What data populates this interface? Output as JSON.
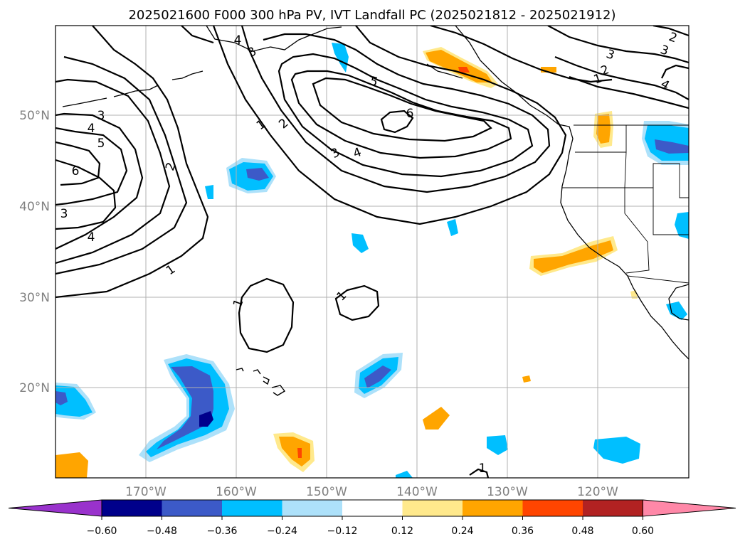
{
  "title": "2025021600 F000 300 hPa PV, IVT Landfall PC (2025021812 - 2025021912)",
  "map": {
    "lat_labels": [
      "50°N",
      "40°N",
      "30°N",
      "20°N"
    ],
    "lon_labels": [
      "170°W",
      "160°W",
      "150°W",
      "140°W",
      "130°W",
      "120°W"
    ],
    "contour_labels": [
      "1",
      "2",
      "3",
      "4",
      "5",
      "6"
    ]
  },
  "colorbar": {
    "tick_labels": [
      "−0.60",
      "−0.48",
      "−0.36",
      "−0.24",
      "−0.12",
      "0.12",
      "0.24",
      "0.36",
      "0.48",
      "0.60"
    ],
    "colors": [
      "#9932cc",
      "#00008b",
      "#3c5ac8",
      "#00bfff",
      "#ade1fa",
      "#ffffff",
      "#ffe98c",
      "#ffa500",
      "#ff4500",
      "#b22222",
      "#ff88a8"
    ]
  }
}
